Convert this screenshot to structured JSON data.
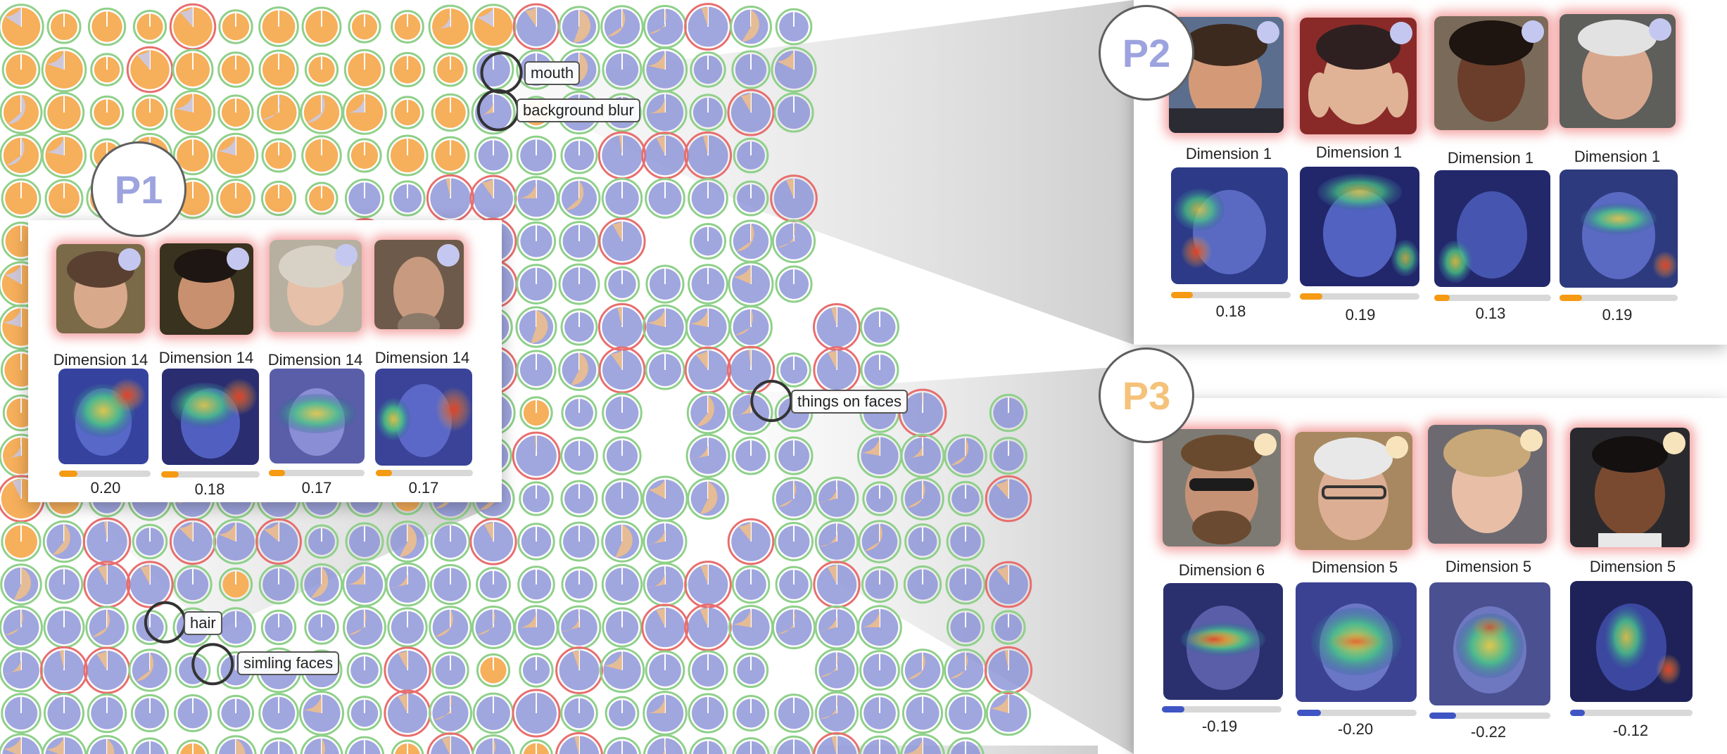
{
  "colors": {
    "p1_accent": "#9ca3de",
    "p2_accent": "#9ca3de",
    "p3_accent": "#f5c27a",
    "orange_glyph": "#f5ab52",
    "blue_glyph": "#8890d6",
    "score_orange": "#f59a12",
    "score_blue": "#3f55c4"
  },
  "cluster_labels": [
    {
      "text": "mouth"
    },
    {
      "text": "background blur"
    },
    {
      "text": "things on faces"
    },
    {
      "text": "hair"
    },
    {
      "text": "simling faces"
    }
  ],
  "panels": {
    "p1": {
      "badge": "P1",
      "cards": [
        {
          "dimension": "Dimension 14",
          "score": "0.20",
          "score_value": 0.2
        },
        {
          "dimension": "Dimension 14",
          "score": "0.18",
          "score_value": 0.18
        },
        {
          "dimension": "Dimension 14",
          "score": "0.17",
          "score_value": 0.17
        },
        {
          "dimension": "Dimension 14",
          "score": "0.17",
          "score_value": 0.17
        }
      ]
    },
    "p2": {
      "badge": "P2",
      "cards": [
        {
          "dimension": "Dimension 1",
          "score": "0.18",
          "score_value": 0.18
        },
        {
          "dimension": "Dimension 1",
          "score": "0.19",
          "score_value": 0.19
        },
        {
          "dimension": "Dimension 1",
          "score": "0.13",
          "score_value": 0.13
        },
        {
          "dimension": "Dimension 1",
          "score": "0.19",
          "score_value": 0.19
        }
      ]
    },
    "p3": {
      "badge": "P3",
      "cards": [
        {
          "dimension": "Dimension 6",
          "score": "-0.19",
          "score_value": -0.19
        },
        {
          "dimension": "Dimension 5",
          "score": "-0.20",
          "score_value": -0.2
        },
        {
          "dimension": "Dimension 5",
          "score": "-0.22",
          "score_value": -0.22
        },
        {
          "dimension": "Dimension 5",
          "score": "-0.12",
          "score_value": -0.12
        }
      ]
    }
  }
}
